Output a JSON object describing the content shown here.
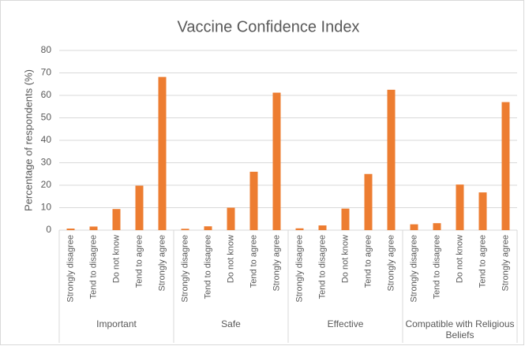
{
  "chart_data": {
    "type": "bar",
    "title": "Vaccine Confidence Index",
    "y_label": "Percentage of respondents (%)",
    "groups": [
      "Important",
      "Safe",
      "Effective",
      "Compatible with Religious Beliefs"
    ],
    "categories": [
      "Strongly disagree",
      "Tend to disagree",
      "Do not know",
      "Tend to agree",
      "Strongly agree",
      "Strongly disagree",
      "Tend to disagree",
      "Do not know",
      "Tend to agree",
      "Strongly agree",
      "Strongly disagree",
      "Tend to disagree",
      "Do not know",
      "Tend to agree",
      "Strongly agree",
      "Strongly disagree",
      "Tend to disagree",
      "Do not know",
      "Tend to agree",
      "Strongly agree"
    ],
    "values": [
      0.7,
      1.6,
      9.4,
      19.8,
      68.2,
      0.6,
      1.7,
      10,
      26,
      61.2,
      0.8,
      2.1,
      9.6,
      25,
      62.5,
      2.6,
      3.1,
      20.3,
      16.8,
      57
    ],
    "color": "#ed7d31",
    "ylim": [
      0,
      80
    ],
    "yticks": [
      0,
      10,
      20,
      30,
      40,
      50,
      60,
      70,
      80
    ],
    "grid": true
  }
}
